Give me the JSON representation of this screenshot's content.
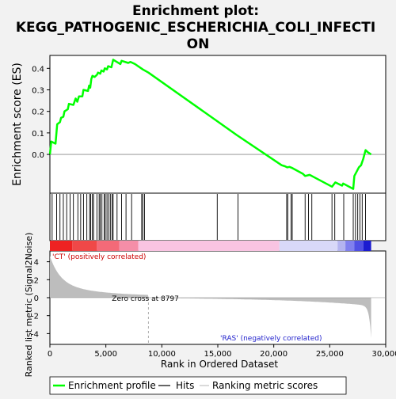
{
  "chart_data": {
    "type": "line",
    "title_lines": [
      "Enrichment plot:",
      "KEGG_PATHOGENIC_ESCHERICHIA_COLI_INFECTI",
      "ON"
    ],
    "ylabel": "Enrichment score (ES)",
    "ylabel2": "Ranked list metric (Signal2Noise)",
    "xlabel": "Rank in Ordered Dataset",
    "xlim": [
      0,
      30000
    ],
    "ylim": [
      -0.18,
      0.46
    ],
    "ylim2": [
      -5.2,
      5.2
    ],
    "x_ticks": [
      "0",
      "5,000",
      "10,000",
      "15,000",
      "20,000",
      "25,000",
      "30,000"
    ],
    "x_tick_values": [
      0,
      5000,
      10000,
      15000,
      20000,
      25000,
      30000
    ],
    "y_ticks": [
      "0.0",
      "0.1",
      "0.2",
      "0.3",
      "0.4"
    ],
    "y_tick_values": [
      0.0,
      0.1,
      0.2,
      0.3,
      0.4
    ],
    "y2_ticks": [
      "4",
      "2",
      "0",
      "-2",
      "-4"
    ],
    "y2_tick_values": [
      4,
      2,
      0,
      -2,
      -4
    ],
    "zero_cross_label": "Zero cross at 8797",
    "zero_cross": 8797,
    "pos_label": "'CT' (positively correlated)",
    "neg_label": "'RAS' (negatively correlated)",
    "n_genes": 28700,
    "series": [
      {
        "name": "Enrichment profile",
        "color": "#00ff00",
        "points": [
          [
            0,
            0.0
          ],
          [
            120,
            0.06
          ],
          [
            500,
            0.05
          ],
          [
            650,
            0.14
          ],
          [
            900,
            0.15
          ],
          [
            1000,
            0.17
          ],
          [
            1200,
            0.175
          ],
          [
            1300,
            0.2
          ],
          [
            1600,
            0.21
          ],
          [
            1700,
            0.235
          ],
          [
            2100,
            0.23
          ],
          [
            2300,
            0.26
          ],
          [
            2450,
            0.245
          ],
          [
            2600,
            0.27
          ],
          [
            2900,
            0.27
          ],
          [
            3000,
            0.3
          ],
          [
            3400,
            0.295
          ],
          [
            3500,
            0.32
          ],
          [
            3600,
            0.31
          ],
          [
            3700,
            0.35
          ],
          [
            3800,
            0.365
          ],
          [
            4000,
            0.36
          ],
          [
            4200,
            0.37
          ],
          [
            4300,
            0.38
          ],
          [
            4500,
            0.375
          ],
          [
            4600,
            0.39
          ],
          [
            4800,
            0.385
          ],
          [
            4900,
            0.4
          ],
          [
            5100,
            0.395
          ],
          [
            5200,
            0.41
          ],
          [
            5500,
            0.405
          ],
          [
            5650,
            0.44
          ],
          [
            6300,
            0.42
          ],
          [
            6400,
            0.435
          ],
          [
            7000,
            0.425
          ],
          [
            7200,
            0.43
          ],
          [
            7600,
            0.42
          ],
          [
            8300,
            0.395
          ],
          [
            8800,
            0.38
          ],
          [
            14800,
            0.16
          ],
          [
            16700,
            0.09
          ],
          [
            20700,
            -0.05
          ],
          [
            21000,
            -0.055
          ],
          [
            21200,
            -0.06
          ],
          [
            21400,
            -0.058
          ],
          [
            21600,
            -0.062
          ],
          [
            22600,
            -0.09
          ],
          [
            22800,
            -0.1
          ],
          [
            23200,
            -0.095
          ],
          [
            23400,
            -0.1
          ],
          [
            25200,
            -0.15
          ],
          [
            25500,
            -0.13
          ],
          [
            26100,
            -0.145
          ],
          [
            26200,
            -0.135
          ],
          [
            27100,
            -0.16
          ],
          [
            27200,
            -0.1
          ],
          [
            27400,
            -0.08
          ],
          [
            27600,
            -0.06
          ],
          [
            27800,
            -0.05
          ],
          [
            28000,
            -0.02
          ],
          [
            28200,
            0.02
          ],
          [
            28400,
            0.01
          ],
          [
            28700,
            0.0
          ]
        ]
      },
      {
        "name": "Hits",
        "color": "#000000",
        "hits": [
          200,
          600,
          900,
          1200,
          1500,
          1800,
          2100,
          2500,
          2750,
          3000,
          3300,
          3550,
          3650,
          3800,
          3900,
          4200,
          4400,
          4500,
          4650,
          4850,
          4950,
          5100,
          5250,
          5400,
          5550,
          5650,
          6000,
          6400,
          6800,
          7300,
          8200,
          8300,
          8450,
          14950,
          16800,
          21150,
          21250,
          21550,
          21650,
          22800,
          23100,
          23400,
          25200,
          25450,
          26250,
          27100,
          27300,
          27500,
          27700,
          27900,
          28200
        ]
      },
      {
        "name": "Ranking metric scores",
        "color": "#c0c0c0"
      }
    ]
  }
}
